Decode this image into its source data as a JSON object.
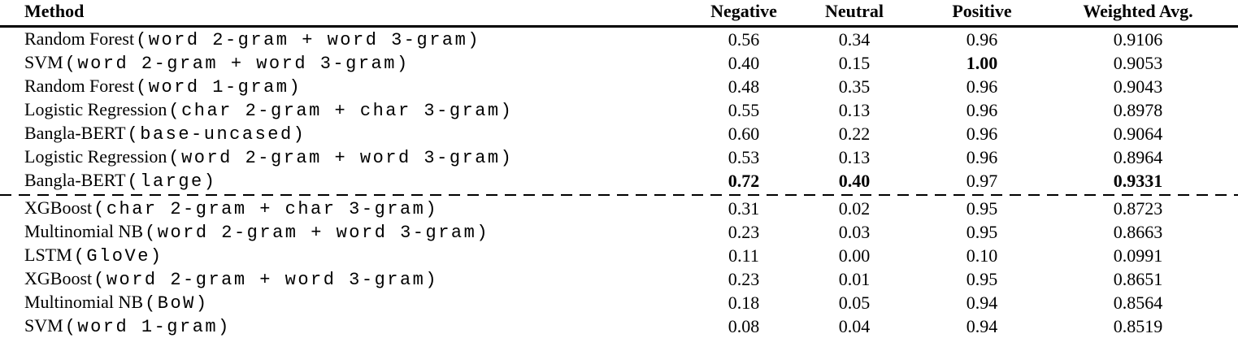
{
  "table": {
    "header": {
      "method": "Method",
      "negative": "Negative",
      "neutral": "Neutral",
      "positive": "Positive",
      "weighted_avg": "Weighted Avg."
    },
    "divider_after_row_index": 6,
    "rows": [
      {
        "method": "Random Forest",
        "spec": "(word 2-gram + word 3-gram)",
        "negative": "0.56",
        "neutral": "0.34",
        "positive": "0.96",
        "weighted_avg": "0.9106",
        "bold_cells": []
      },
      {
        "method": "SVM",
        "spec": "(word 2-gram + word 3-gram)",
        "negative": "0.40",
        "neutral": "0.15",
        "positive": "1.00",
        "weighted_avg": "0.9053",
        "bold_cells": [
          "positive"
        ]
      },
      {
        "method": "Random Forest",
        "spec": "(word 1-gram)",
        "negative": "0.48",
        "neutral": "0.35",
        "positive": "0.96",
        "weighted_avg": "0.9043",
        "bold_cells": []
      },
      {
        "method": "Logistic Regression",
        "spec": "(char 2-gram + char 3-gram)",
        "negative": "0.55",
        "neutral": "0.13",
        "positive": "0.96",
        "weighted_avg": "0.8978",
        "bold_cells": []
      },
      {
        "method": "Bangla-BERT",
        "spec": "(base-uncased)",
        "negative": "0.60",
        "neutral": "0.22",
        "positive": "0.96",
        "weighted_avg": "0.9064",
        "bold_cells": []
      },
      {
        "method": "Logistic Regression",
        "spec": "(word 2-gram + word 3-gram)",
        "negative": "0.53",
        "neutral": "0.13",
        "positive": "0.96",
        "weighted_avg": "0.8964",
        "bold_cells": []
      },
      {
        "method": "Bangla-BERT",
        "spec": "(large)",
        "negative": "0.72",
        "neutral": "0.40",
        "positive": "0.97",
        "weighted_avg": "0.9331",
        "bold_cells": [
          "negative",
          "neutral",
          "weighted_avg"
        ]
      },
      {
        "method": "XGBoost",
        "spec": "(char 2-gram + char 3-gram)",
        "negative": "0.31",
        "neutral": "0.02",
        "positive": "0.95",
        "weighted_avg": "0.8723",
        "bold_cells": []
      },
      {
        "method": "Multinomial NB",
        "spec": "(word 2-gram + word 3-gram)",
        "negative": "0.23",
        "neutral": "0.03",
        "positive": "0.95",
        "weighted_avg": "0.8663",
        "bold_cells": []
      },
      {
        "method": "LSTM",
        "spec": "(GloVe)",
        "negative": "0.11",
        "neutral": "0.00",
        "positive": "0.10",
        "weighted_avg": "0.0991",
        "bold_cells": []
      },
      {
        "method": "XGBoost",
        "spec": "(word 2-gram + word 3-gram)",
        "negative": "0.23",
        "neutral": "0.01",
        "positive": "0.95",
        "weighted_avg": "0.8651",
        "bold_cells": []
      },
      {
        "method": "Multinomial NB",
        "spec": "(BoW)",
        "negative": "0.18",
        "neutral": "0.05",
        "positive": "0.94",
        "weighted_avg": "0.8564",
        "bold_cells": []
      },
      {
        "method": "SVM",
        "spec": "(word 1-gram)",
        "negative": "0.08",
        "neutral": "0.04",
        "positive": "0.94",
        "weighted_avg": "0.8519",
        "bold_cells": []
      }
    ]
  }
}
